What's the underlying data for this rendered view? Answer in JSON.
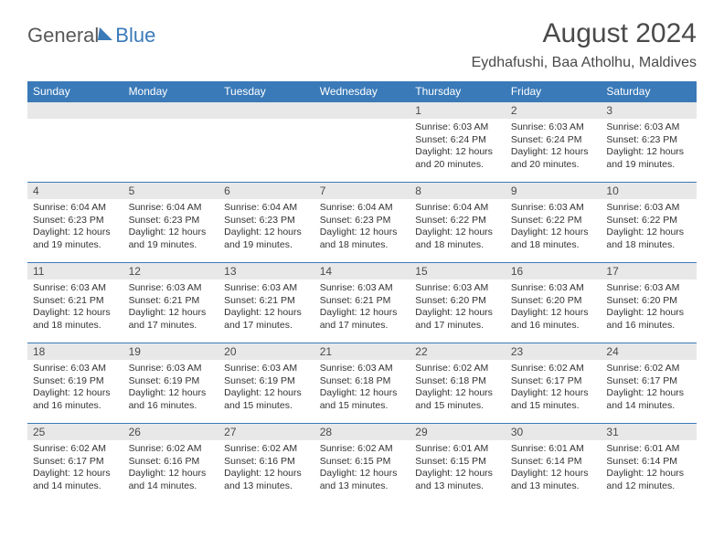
{
  "brand": {
    "part1": "General",
    "part2": "Blue"
  },
  "title": "August 2024",
  "location": "Eydhafushi, Baa Atholhu, Maldives",
  "colors": {
    "header_bg": "#3a7ab8",
    "header_text": "#ffffff",
    "daynum_bg": "#e8e8e8",
    "cell_border": "#3a7ab8",
    "body_text": "#333333",
    "title_text": "#4a4a4a"
  },
  "weekdays": [
    "Sunday",
    "Monday",
    "Tuesday",
    "Wednesday",
    "Thursday",
    "Friday",
    "Saturday"
  ],
  "weeks": [
    [
      {
        "blank": true
      },
      {
        "blank": true
      },
      {
        "blank": true
      },
      {
        "blank": true
      },
      {
        "day": "1",
        "sunrise": "Sunrise: 6:03 AM",
        "sunset": "Sunset: 6:24 PM",
        "daylight": "Daylight: 12 hours and 20 minutes."
      },
      {
        "day": "2",
        "sunrise": "Sunrise: 6:03 AM",
        "sunset": "Sunset: 6:24 PM",
        "daylight": "Daylight: 12 hours and 20 minutes."
      },
      {
        "day": "3",
        "sunrise": "Sunrise: 6:03 AM",
        "sunset": "Sunset: 6:23 PM",
        "daylight": "Daylight: 12 hours and 19 minutes."
      }
    ],
    [
      {
        "day": "4",
        "sunrise": "Sunrise: 6:04 AM",
        "sunset": "Sunset: 6:23 PM",
        "daylight": "Daylight: 12 hours and 19 minutes."
      },
      {
        "day": "5",
        "sunrise": "Sunrise: 6:04 AM",
        "sunset": "Sunset: 6:23 PM",
        "daylight": "Daylight: 12 hours and 19 minutes."
      },
      {
        "day": "6",
        "sunrise": "Sunrise: 6:04 AM",
        "sunset": "Sunset: 6:23 PM",
        "daylight": "Daylight: 12 hours and 19 minutes."
      },
      {
        "day": "7",
        "sunrise": "Sunrise: 6:04 AM",
        "sunset": "Sunset: 6:23 PM",
        "daylight": "Daylight: 12 hours and 18 minutes."
      },
      {
        "day": "8",
        "sunrise": "Sunrise: 6:04 AM",
        "sunset": "Sunset: 6:22 PM",
        "daylight": "Daylight: 12 hours and 18 minutes."
      },
      {
        "day": "9",
        "sunrise": "Sunrise: 6:03 AM",
        "sunset": "Sunset: 6:22 PM",
        "daylight": "Daylight: 12 hours and 18 minutes."
      },
      {
        "day": "10",
        "sunrise": "Sunrise: 6:03 AM",
        "sunset": "Sunset: 6:22 PM",
        "daylight": "Daylight: 12 hours and 18 minutes."
      }
    ],
    [
      {
        "day": "11",
        "sunrise": "Sunrise: 6:03 AM",
        "sunset": "Sunset: 6:21 PM",
        "daylight": "Daylight: 12 hours and 18 minutes."
      },
      {
        "day": "12",
        "sunrise": "Sunrise: 6:03 AM",
        "sunset": "Sunset: 6:21 PM",
        "daylight": "Daylight: 12 hours and 17 minutes."
      },
      {
        "day": "13",
        "sunrise": "Sunrise: 6:03 AM",
        "sunset": "Sunset: 6:21 PM",
        "daylight": "Daylight: 12 hours and 17 minutes."
      },
      {
        "day": "14",
        "sunrise": "Sunrise: 6:03 AM",
        "sunset": "Sunset: 6:21 PM",
        "daylight": "Daylight: 12 hours and 17 minutes."
      },
      {
        "day": "15",
        "sunrise": "Sunrise: 6:03 AM",
        "sunset": "Sunset: 6:20 PM",
        "daylight": "Daylight: 12 hours and 17 minutes."
      },
      {
        "day": "16",
        "sunrise": "Sunrise: 6:03 AM",
        "sunset": "Sunset: 6:20 PM",
        "daylight": "Daylight: 12 hours and 16 minutes."
      },
      {
        "day": "17",
        "sunrise": "Sunrise: 6:03 AM",
        "sunset": "Sunset: 6:20 PM",
        "daylight": "Daylight: 12 hours and 16 minutes."
      }
    ],
    [
      {
        "day": "18",
        "sunrise": "Sunrise: 6:03 AM",
        "sunset": "Sunset: 6:19 PM",
        "daylight": "Daylight: 12 hours and 16 minutes."
      },
      {
        "day": "19",
        "sunrise": "Sunrise: 6:03 AM",
        "sunset": "Sunset: 6:19 PM",
        "daylight": "Daylight: 12 hours and 16 minutes."
      },
      {
        "day": "20",
        "sunrise": "Sunrise: 6:03 AM",
        "sunset": "Sunset: 6:19 PM",
        "daylight": "Daylight: 12 hours and 15 minutes."
      },
      {
        "day": "21",
        "sunrise": "Sunrise: 6:03 AM",
        "sunset": "Sunset: 6:18 PM",
        "daylight": "Daylight: 12 hours and 15 minutes."
      },
      {
        "day": "22",
        "sunrise": "Sunrise: 6:02 AM",
        "sunset": "Sunset: 6:18 PM",
        "daylight": "Daylight: 12 hours and 15 minutes."
      },
      {
        "day": "23",
        "sunrise": "Sunrise: 6:02 AM",
        "sunset": "Sunset: 6:17 PM",
        "daylight": "Daylight: 12 hours and 15 minutes."
      },
      {
        "day": "24",
        "sunrise": "Sunrise: 6:02 AM",
        "sunset": "Sunset: 6:17 PM",
        "daylight": "Daylight: 12 hours and 14 minutes."
      }
    ],
    [
      {
        "day": "25",
        "sunrise": "Sunrise: 6:02 AM",
        "sunset": "Sunset: 6:17 PM",
        "daylight": "Daylight: 12 hours and 14 minutes."
      },
      {
        "day": "26",
        "sunrise": "Sunrise: 6:02 AM",
        "sunset": "Sunset: 6:16 PM",
        "daylight": "Daylight: 12 hours and 14 minutes."
      },
      {
        "day": "27",
        "sunrise": "Sunrise: 6:02 AM",
        "sunset": "Sunset: 6:16 PM",
        "daylight": "Daylight: 12 hours and 13 minutes."
      },
      {
        "day": "28",
        "sunrise": "Sunrise: 6:02 AM",
        "sunset": "Sunset: 6:15 PM",
        "daylight": "Daylight: 12 hours and 13 minutes."
      },
      {
        "day": "29",
        "sunrise": "Sunrise: 6:01 AM",
        "sunset": "Sunset: 6:15 PM",
        "daylight": "Daylight: 12 hours and 13 minutes."
      },
      {
        "day": "30",
        "sunrise": "Sunrise: 6:01 AM",
        "sunset": "Sunset: 6:14 PM",
        "daylight": "Daylight: 12 hours and 13 minutes."
      },
      {
        "day": "31",
        "sunrise": "Sunrise: 6:01 AM",
        "sunset": "Sunset: 6:14 PM",
        "daylight": "Daylight: 12 hours and 12 minutes."
      }
    ]
  ]
}
